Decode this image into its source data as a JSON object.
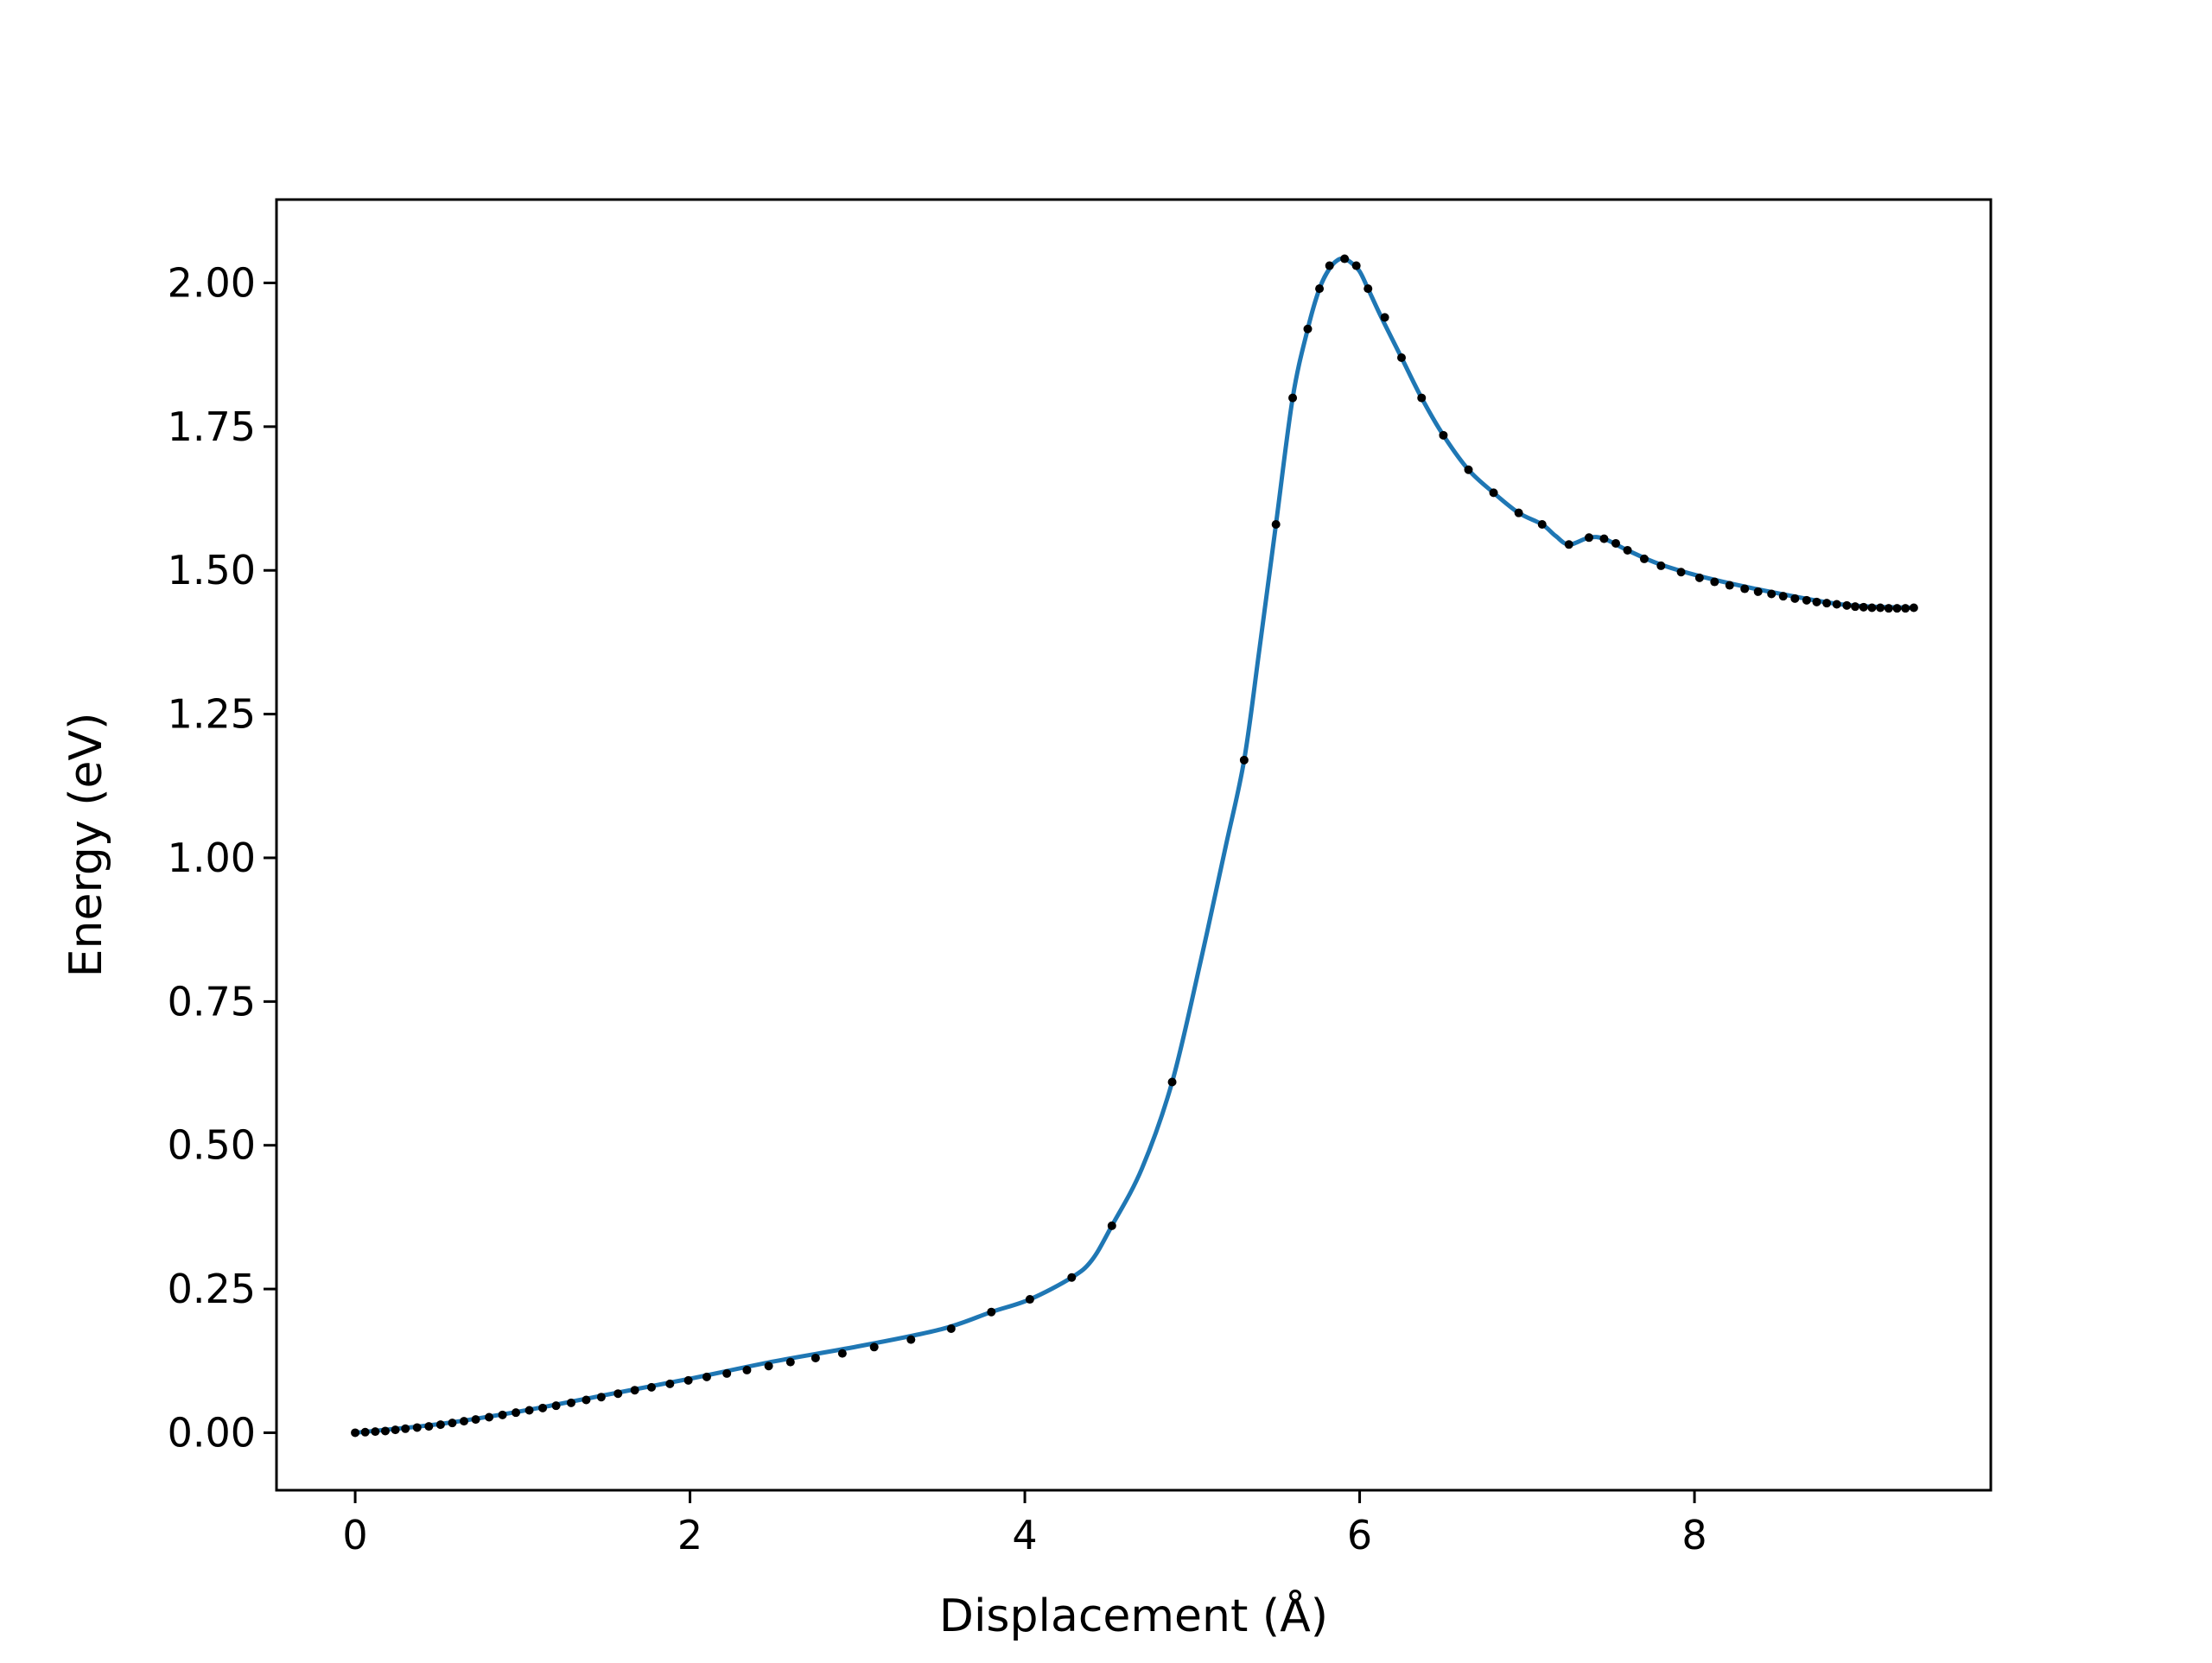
{
  "chart_data": {
    "type": "line",
    "title": "",
    "xlabel": "Displacement (Å)",
    "ylabel": "Energy (eV)",
    "xlim": [
      -0.47,
      9.77
    ],
    "ylim": [
      -0.1,
      2.145
    ],
    "xticks": [
      0,
      2,
      4,
      6,
      8
    ],
    "xtick_labels": [
      "0",
      "2",
      "4",
      "6",
      "8"
    ],
    "yticks": [
      0,
      0.25,
      0.5,
      0.75,
      1.0,
      1.25,
      1.5,
      1.75,
      2.0
    ],
    "ytick_labels": [
      "0.00",
      "0.25",
      "0.50",
      "0.75",
      "1.00",
      "1.25",
      "1.50",
      "1.75",
      "2.00"
    ],
    "grid": false,
    "legend": false,
    "colors": {
      "line": "#1f77b4",
      "markers": "#000000"
    },
    "series": [
      {
        "kind": "line",
        "x": [
          0.0,
          0.5,
          1.0,
          1.5,
          2.0,
          2.5,
          3.0,
          3.5,
          3.8,
          4.03,
          4.28,
          4.4,
          4.52,
          4.7,
          4.88,
          5.05,
          5.2,
          5.31,
          5.4,
          5.5,
          5.6,
          5.69,
          5.76,
          5.82,
          5.87,
          5.91,
          5.95,
          6.0,
          6.05,
          6.13,
          6.25,
          6.37,
          6.5,
          6.65,
          6.8,
          6.95,
          7.09,
          7.17,
          7.25,
          7.37,
          7.46,
          7.6,
          7.8,
          8.1,
          8.5,
          8.9,
          9.3
        ],
        "y": [
          0.0,
          0.015,
          0.038,
          0.066,
          0.094,
          0.124,
          0.15,
          0.18,
          0.21,
          0.232,
          0.27,
          0.3,
          0.36,
          0.46,
          0.61,
          0.82,
          1.02,
          1.17,
          1.36,
          1.58,
          1.8,
          1.92,
          1.99,
          2.025,
          2.04,
          2.042,
          2.035,
          2.02,
          1.99,
          1.94,
          1.87,
          1.8,
          1.735,
          1.675,
          1.635,
          1.6,
          1.58,
          1.56,
          1.545,
          1.557,
          1.555,
          1.535,
          1.51,
          1.485,
          1.46,
          1.44,
          1.435
        ]
      },
      {
        "kind": "scatter",
        "x": [
          0.0,
          0.06,
          0.12,
          0.18,
          0.24,
          0.3,
          0.37,
          0.44,
          0.51,
          0.58,
          0.65,
          0.72,
          0.8,
          0.88,
          0.96,
          1.04,
          1.12,
          1.2,
          1.29,
          1.38,
          1.47,
          1.57,
          1.67,
          1.77,
          1.88,
          1.99,
          2.1,
          2.22,
          2.34,
          2.47,
          2.6,
          2.75,
          2.91,
          3.1,
          3.32,
          3.56,
          3.8,
          4.03,
          4.28,
          4.52,
          4.88,
          5.31,
          5.5,
          5.6,
          5.69,
          5.76,
          5.82,
          5.91,
          5.98,
          6.05,
          6.15,
          6.25,
          6.37,
          6.5,
          6.65,
          6.8,
          6.95,
          7.09,
          7.25,
          7.37,
          7.46,
          7.53,
          7.6,
          7.7,
          7.8,
          7.92,
          8.03,
          8.12,
          8.21,
          8.3,
          8.38,
          8.46,
          8.53,
          8.6,
          8.67,
          8.73,
          8.79,
          8.85,
          8.91,
          8.96,
          9.01,
          9.06,
          9.11,
          9.16,
          9.21,
          9.26,
          9.31
        ],
        "y": [
          0.0,
          0.001,
          0.002,
          0.003,
          0.005,
          0.007,
          0.009,
          0.011,
          0.014,
          0.017,
          0.02,
          0.023,
          0.027,
          0.031,
          0.035,
          0.039,
          0.043,
          0.047,
          0.052,
          0.057,
          0.062,
          0.068,
          0.074,
          0.079,
          0.085,
          0.091,
          0.097,
          0.103,
          0.109,
          0.116,
          0.123,
          0.13,
          0.138,
          0.149,
          0.162,
          0.181,
          0.21,
          0.232,
          0.27,
          0.36,
          0.61,
          1.17,
          1.58,
          1.8,
          1.92,
          1.99,
          2.03,
          2.042,
          2.03,
          1.99,
          1.94,
          1.87,
          1.8,
          1.735,
          1.675,
          1.635,
          1.6,
          1.58,
          1.545,
          1.557,
          1.555,
          1.547,
          1.535,
          1.52,
          1.508,
          1.497,
          1.487,
          1.48,
          1.474,
          1.468,
          1.463,
          1.459,
          1.455,
          1.451,
          1.448,
          1.445,
          1.443,
          1.441,
          1.439,
          1.437,
          1.436,
          1.435,
          1.435,
          1.434,
          1.434,
          1.434,
          1.435
        ]
      }
    ]
  }
}
